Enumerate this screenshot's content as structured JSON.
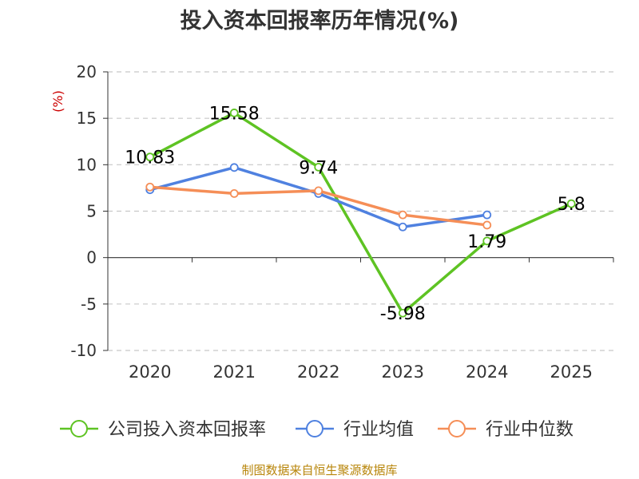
{
  "chart_data": {
    "type": "line",
    "title": "投入资本回报率历年情况(%)",
    "ylabel": "(%)",
    "xlabel": "",
    "categories": [
      "2020",
      "2021",
      "2022",
      "2023",
      "2024",
      "2025"
    ],
    "ylim": [
      -10,
      20
    ],
    "yticks": [
      -10,
      -5,
      0,
      5,
      10,
      15,
      20
    ],
    "grid": true,
    "legend_position": "bottom",
    "series": [
      {
        "name": "公司投入资本回报率",
        "color": "#5ec323",
        "values": [
          10.83,
          15.58,
          9.74,
          -5.98,
          1.79,
          5.8
        ],
        "labels": [
          "10.83",
          "15.58",
          "9.74",
          "-5.98",
          "1.79",
          "5.8"
        ]
      },
      {
        "name": "行业均值",
        "color": "#4f81e0",
        "values": [
          7.3,
          9.7,
          6.9,
          3.3,
          4.6,
          null
        ]
      },
      {
        "name": "行业中位数",
        "color": "#f58e57",
        "values": [
          7.6,
          6.9,
          7.2,
          4.6,
          3.5,
          null
        ]
      }
    ]
  },
  "source": "制图数据来自恒生聚源数据库"
}
